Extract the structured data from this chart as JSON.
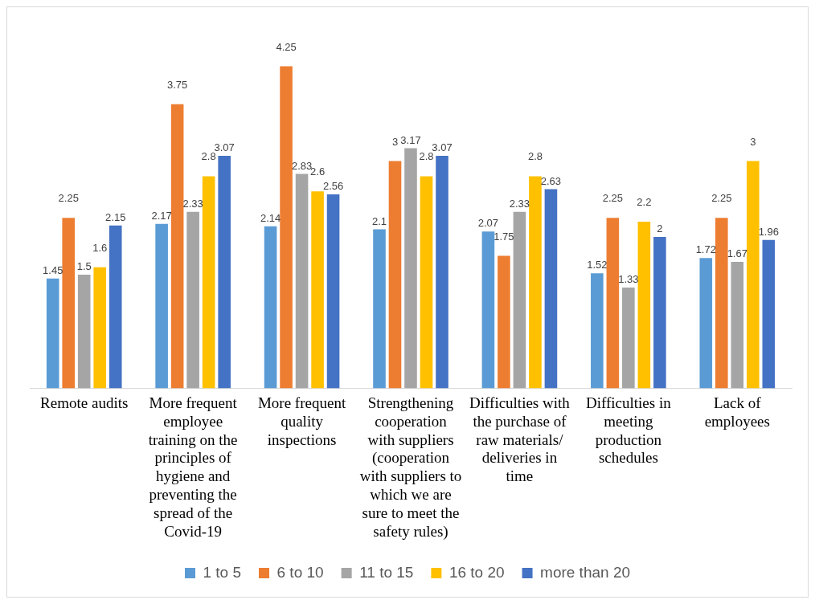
{
  "chart_data": {
    "type": "bar",
    "categories": [
      "Remote audits",
      "More frequent employee training on the principles of hygiene and preventing the spread of the Covid-19",
      "More frequent quality inspections",
      "Strengthening cooperation with suppliers (cooperation with suppliers to which we are sure to meet the safety rules)",
      "Difficulties with the purchase of raw materials/ deliveries in time",
      "Difficulties in meeting production schedules",
      "Lack of employees"
    ],
    "series": [
      {
        "name": "1 to 5",
        "color": "#5b9bd5",
        "values": [
          1.45,
          2.17,
          2.14,
          2.1,
          2.07,
          1.52,
          1.72
        ]
      },
      {
        "name": "6 to 10",
        "color": "#ed7d31",
        "values": [
          2.25,
          3.75,
          4.25,
          3,
          1.75,
          2.25,
          2.25
        ]
      },
      {
        "name": "11 to 15",
        "color": "#a5a5a5",
        "values": [
          1.5,
          2.33,
          2.83,
          3.17,
          2.33,
          1.33,
          1.67
        ]
      },
      {
        "name": "16 to 20",
        "color": "#ffc000",
        "values": [
          1.6,
          2.8,
          2.6,
          2.8,
          2.8,
          2.2,
          3
        ]
      },
      {
        "name": "more than 20",
        "color": "#4472c4",
        "values": [
          2.15,
          3.07,
          2.56,
          3.07,
          2.63,
          2,
          1.96
        ]
      }
    ],
    "data_labels": true,
    "legend": "bottom",
    "grid": false
  }
}
